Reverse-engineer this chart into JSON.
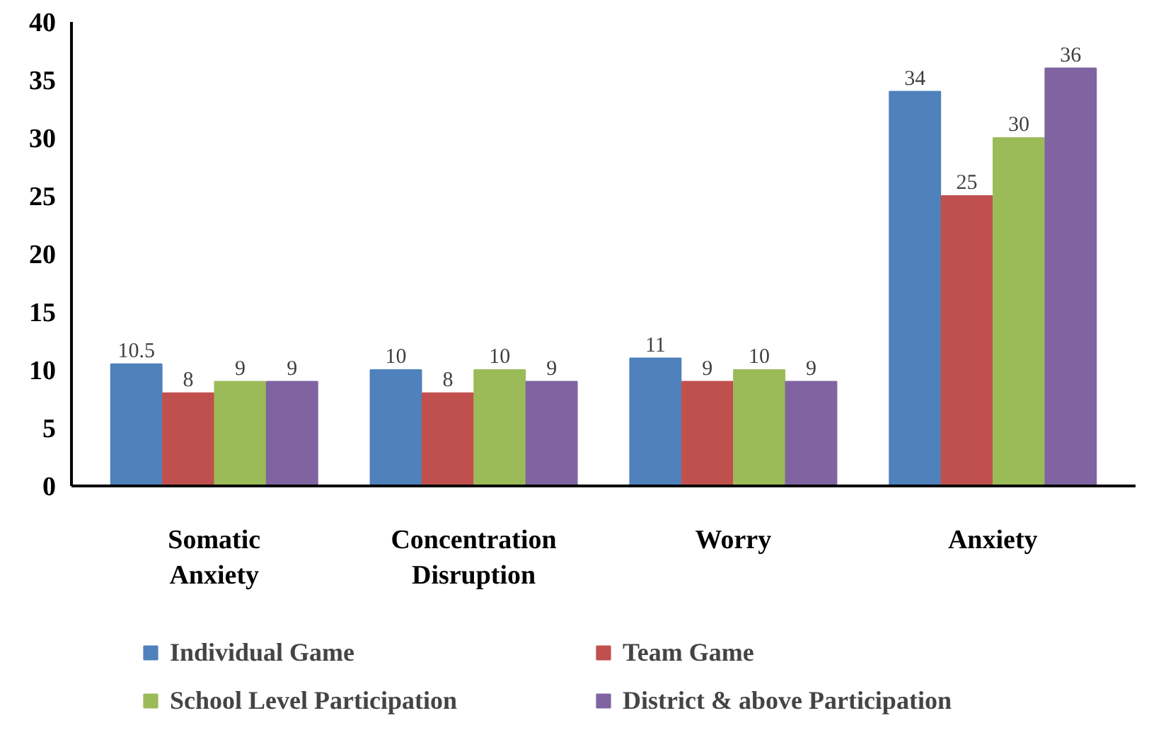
{
  "chart_data": {
    "type": "bar",
    "categories": [
      "Somatic\nAnxiety",
      "Concentration\nDisruption",
      "Worry",
      "Anxiety"
    ],
    "series": [
      {
        "name": "Individual Game",
        "color": "#4f81bd",
        "values": [
          10.5,
          10,
          11,
          34
        ]
      },
      {
        "name": "Team Game",
        "color": "#c0504d",
        "values": [
          8,
          8,
          9,
          25
        ]
      },
      {
        "name": "School Level Participation",
        "color": "#9bbb59",
        "values": [
          9,
          10,
          10,
          30
        ]
      },
      {
        "name": "District & above Participation",
        "color": "#8064a2",
        "values": [
          9,
          9,
          9,
          36
        ]
      }
    ],
    "ylim": [
      0,
      40
    ],
    "yticks": [
      0,
      5,
      10,
      15,
      20,
      25,
      30,
      35,
      40
    ],
    "data_labels": true,
    "grid": false,
    "legend": "bottom"
  }
}
